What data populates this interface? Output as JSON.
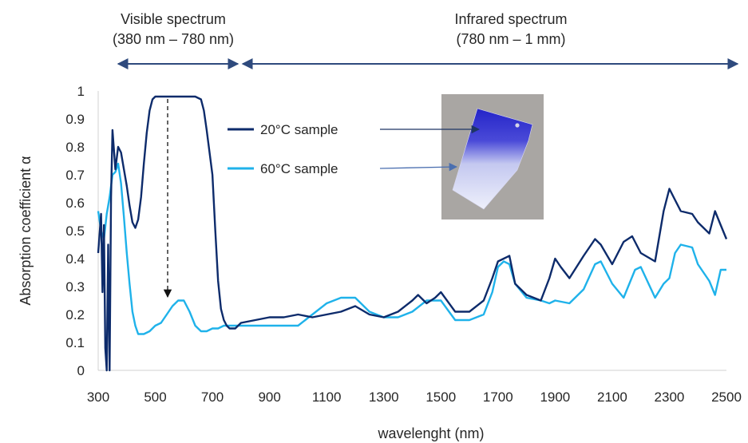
{
  "bands": [
    {
      "line1": "Visible spectrum",
      "line2": "(380 nm – 780 nm)"
    },
    {
      "line1": "Infrared spectrum",
      "line2": "(780 nm – 1 mm)"
    }
  ],
  "chart_data": {
    "type": "line",
    "title": "",
    "xlabel": "wavelenght (nm)",
    "ylabel": "Absorption coefficient α",
    "xlim": [
      300,
      2500
    ],
    "ylim": [
      0,
      1
    ],
    "x_ticks": [
      "300",
      "500",
      "700",
      "900",
      "1100",
      "1300",
      "1500",
      "1700",
      "1900",
      "2100",
      "2300",
      "2500"
    ],
    "y_ticks": [
      "0",
      "0.1",
      "0.2",
      "0.3",
      "0.4",
      "0.5",
      "0.6",
      "0.7",
      "0.8",
      "0.9",
      "1"
    ],
    "grid": false,
    "legend_position": "top-center",
    "series": [
      {
        "name": "20°C sample",
        "color": "#0d2b6b",
        "x": [
          300,
          310,
          315,
          320,
          325,
          330,
          335,
          340,
          345,
          350,
          360,
          370,
          380,
          390,
          400,
          410,
          420,
          430,
          440,
          450,
          460,
          470,
          480,
          490,
          500,
          520,
          540,
          560,
          580,
          600,
          620,
          640,
          660,
          670,
          680,
          690,
          700,
          710,
          720,
          730,
          740,
          750,
          760,
          780,
          800,
          850,
          900,
          950,
          1000,
          1050,
          1100,
          1150,
          1200,
          1250,
          1300,
          1350,
          1400,
          1420,
          1450,
          1480,
          1500,
          1550,
          1600,
          1650,
          1680,
          1700,
          1720,
          1740,
          1760,
          1800,
          1850,
          1880,
          1900,
          1920,
          1950,
          2000,
          2040,
          2060,
          2100,
          2140,
          2170,
          2200,
          2250,
          2280,
          2300,
          2320,
          2340,
          2380,
          2400,
          2440,
          2460,
          2480,
          2500
        ],
        "y": [
          0.42,
          0.56,
          0.28,
          0.52,
          0.08,
          0.0,
          0.45,
          0.0,
          0.62,
          0.86,
          0.72,
          0.8,
          0.78,
          0.72,
          0.66,
          0.59,
          0.53,
          0.51,
          0.54,
          0.62,
          0.74,
          0.85,
          0.93,
          0.97,
          0.98,
          0.98,
          0.98,
          0.98,
          0.98,
          0.98,
          0.98,
          0.98,
          0.97,
          0.93,
          0.86,
          0.78,
          0.7,
          0.5,
          0.32,
          0.22,
          0.18,
          0.16,
          0.15,
          0.15,
          0.17,
          0.18,
          0.19,
          0.19,
          0.2,
          0.19,
          0.2,
          0.21,
          0.23,
          0.2,
          0.19,
          0.21,
          0.25,
          0.27,
          0.24,
          0.26,
          0.28,
          0.21,
          0.21,
          0.25,
          0.33,
          0.39,
          0.4,
          0.41,
          0.31,
          0.27,
          0.25,
          0.33,
          0.4,
          0.37,
          0.33,
          0.41,
          0.47,
          0.45,
          0.38,
          0.46,
          0.48,
          0.42,
          0.39,
          0.57,
          0.65,
          0.61,
          0.57,
          0.56,
          0.53,
          0.49,
          0.57,
          0.52,
          0.47
        ]
      },
      {
        "name": "60°C sample",
        "color": "#1fb2ea",
        "x": [
          300,
          310,
          320,
          330,
          340,
          350,
          360,
          370,
          380,
          390,
          400,
          410,
          420,
          430,
          440,
          460,
          480,
          500,
          520,
          540,
          560,
          580,
          600,
          620,
          640,
          660,
          680,
          700,
          720,
          740,
          760,
          780,
          800,
          850,
          900,
          950,
          1000,
          1050,
          1100,
          1150,
          1200,
          1250,
          1300,
          1350,
          1400,
          1450,
          1500,
          1550,
          1600,
          1650,
          1680,
          1700,
          1720,
          1740,
          1760,
          1800,
          1850,
          1880,
          1900,
          1950,
          2000,
          2040,
          2060,
          2100,
          2140,
          2180,
          2200,
          2250,
          2280,
          2300,
          2320,
          2340,
          2380,
          2400,
          2440,
          2460,
          2480,
          2500
        ],
        "y": [
          0.57,
          0.5,
          0.47,
          0.56,
          0.62,
          0.7,
          0.71,
          0.74,
          0.67,
          0.55,
          0.42,
          0.31,
          0.21,
          0.16,
          0.13,
          0.13,
          0.14,
          0.16,
          0.17,
          0.2,
          0.23,
          0.25,
          0.25,
          0.21,
          0.16,
          0.14,
          0.14,
          0.15,
          0.15,
          0.16,
          0.16,
          0.16,
          0.16,
          0.16,
          0.16,
          0.16,
          0.16,
          0.2,
          0.24,
          0.26,
          0.26,
          0.21,
          0.19,
          0.19,
          0.21,
          0.25,
          0.25,
          0.18,
          0.18,
          0.2,
          0.28,
          0.37,
          0.39,
          0.38,
          0.31,
          0.26,
          0.25,
          0.24,
          0.25,
          0.24,
          0.29,
          0.38,
          0.39,
          0.31,
          0.26,
          0.36,
          0.37,
          0.26,
          0.31,
          0.33,
          0.42,
          0.45,
          0.44,
          0.38,
          0.32,
          0.27,
          0.36,
          0.36
        ]
      }
    ]
  },
  "photo_caption": ""
}
